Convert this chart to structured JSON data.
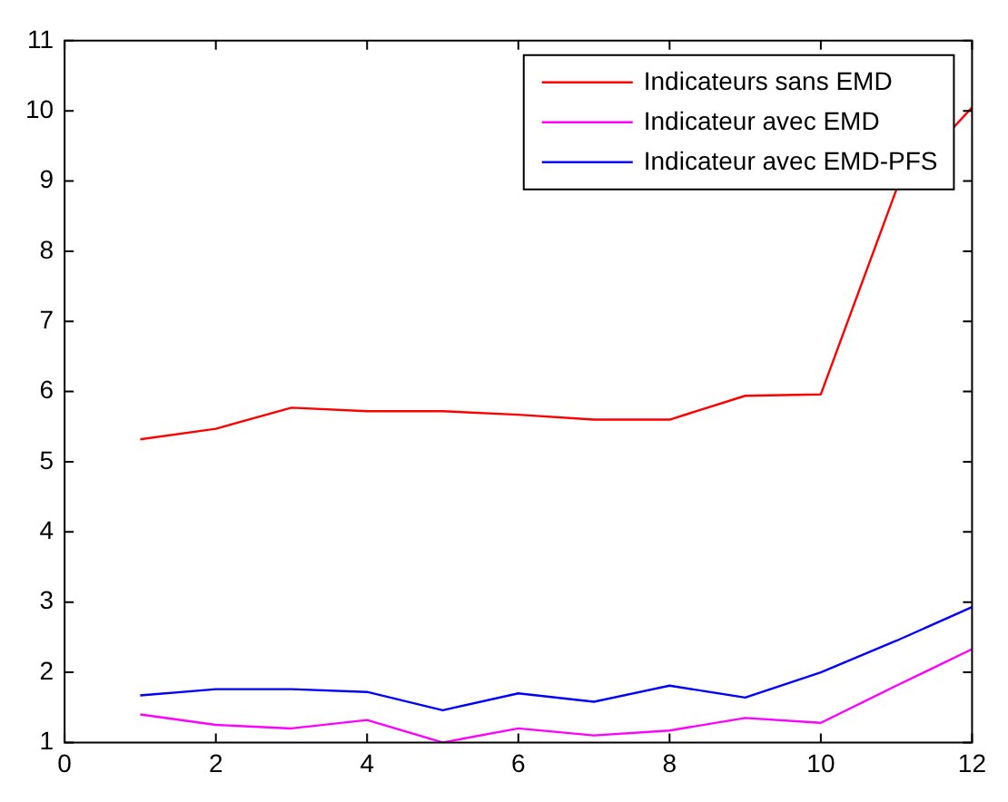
{
  "chart_data": {
    "type": "line",
    "x": [
      1,
      2,
      3,
      4,
      5,
      6,
      7,
      8,
      9,
      10,
      11,
      12
    ],
    "series": [
      {
        "name": "Indicateurs sans EMD",
        "color": "#ff0000",
        "values": [
          5.32,
          5.47,
          5.77,
          5.72,
          5.72,
          5.67,
          5.6,
          5.6,
          5.94,
          5.96,
          8.88,
          10.05
        ]
      },
      {
        "name": "Indicateur avec EMD",
        "color": "#ff00ff",
        "values": [
          1.4,
          1.25,
          1.2,
          1.32,
          1.0,
          1.2,
          1.1,
          1.17,
          1.35,
          1.28,
          1.81,
          2.33
        ]
      },
      {
        "name": "Indicateur avec EMD-PFS",
        "color": "#0000ff",
        "values": [
          1.67,
          1.76,
          1.76,
          1.72,
          1.46,
          1.7,
          1.58,
          1.81,
          1.64,
          2.0,
          2.45,
          2.93
        ]
      }
    ],
    "xlim": [
      0,
      12
    ],
    "xticks": [
      0,
      2,
      4,
      6,
      8,
      10,
      12
    ],
    "ylim": [
      1,
      11
    ],
    "yticks": [
      1,
      2,
      3,
      4,
      5,
      6,
      7,
      8,
      9,
      10,
      11
    ],
    "grid": false,
    "legend": "top right",
    "marker": "none",
    "line_style": "solid"
  }
}
